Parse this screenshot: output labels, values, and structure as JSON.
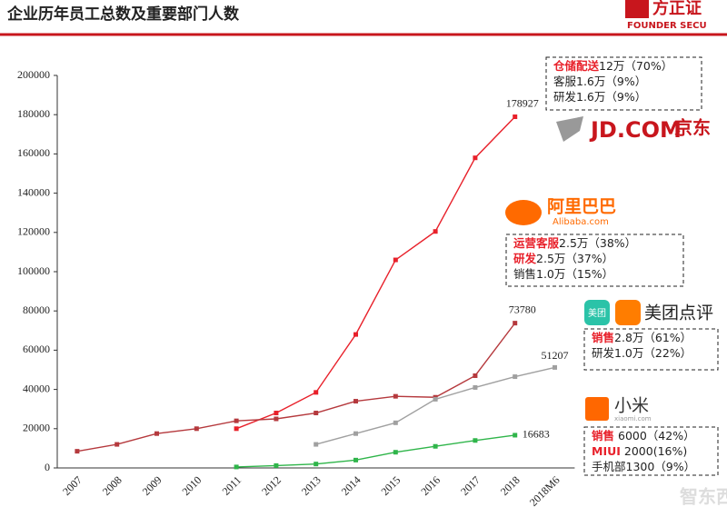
{
  "header": {
    "brand": "FOUNDER SECU",
    "watermark": "智东西"
  },
  "chart_data": {
    "type": "line",
    "title": "企业历年员工总数及重要部门人数",
    "categories": [
      "2007",
      "2008",
      "2009",
      "2010",
      "2011",
      "2012",
      "2013",
      "2014",
      "2015",
      "2016",
      "2017",
      "2018",
      "2018M6"
    ],
    "ylim": [
      0,
      200000
    ],
    "yticks": [
      0,
      20000,
      40000,
      60000,
      80000,
      100000,
      120000,
      140000,
      160000,
      180000,
      200000
    ],
    "grid": false,
    "series": [
      {
        "name": "京东",
        "logo_text": "JD.COM",
        "color": "#e8202a",
        "values": [
          null,
          null,
          null,
          null,
          20000,
          28000,
          38500,
          68000,
          106000,
          120500,
          158000,
          178927,
          null
        ],
        "annotation": [
          [
            {
              "text": "仓储配送",
              "highlight": true
            },
            {
              "text": "12万（70%）"
            }
          ],
          [
            {
              "text": "客服1.6万（9%）"
            }
          ],
          [
            {
              "text": "研发1.6万（9%）"
            }
          ]
        ]
      },
      {
        "name": "阿里巴巴",
        "logo_text": "Alibaba.com",
        "color": "#b5393d",
        "values": [
          8500,
          12000,
          17500,
          20000,
          24000,
          25000,
          28000,
          34000,
          36500,
          36000,
          47000,
          73780,
          null
        ],
        "annotation": [
          [
            {
              "text": "运营客服",
              "highlight": true
            },
            {
              "text": "2.5万（38%）"
            }
          ],
          [
            {
              "text": "研发",
              "highlight": true
            },
            {
              "text": "2.5万（37%）"
            }
          ],
          [
            {
              "text": "销售1.0万（15%）"
            }
          ]
        ]
      },
      {
        "name": "美团点评",
        "logo_text": "美团",
        "color": "#a0a0a0",
        "values": [
          null,
          null,
          null,
          null,
          null,
          null,
          12000,
          17500,
          23000,
          35000,
          41000,
          46500,
          51207
        ],
        "annotation": [
          [
            {
              "text": "销售",
              "highlight": true
            },
            {
              "text": "2.8万（61%）"
            }
          ],
          [
            {
              "text": "研发1.0万（22%）"
            }
          ]
        ]
      },
      {
        "name": "小米",
        "logo_text": "xiaomi.com",
        "color": "#2fb54a",
        "values": [
          null,
          null,
          null,
          null,
          500,
          1200,
          2000,
          4000,
          8000,
          11000,
          14000,
          16683,
          null
        ],
        "annotation": [
          [
            {
              "text": "销售",
              "highlight": true
            },
            {
              "text": " 6000（42%）"
            }
          ],
          [
            {
              "text": "MIUI",
              "highlight": true
            },
            {
              "text": " 2000(16%)"
            }
          ],
          [
            {
              "text": "手机部1300（9%）"
            }
          ]
        ]
      }
    ]
  }
}
